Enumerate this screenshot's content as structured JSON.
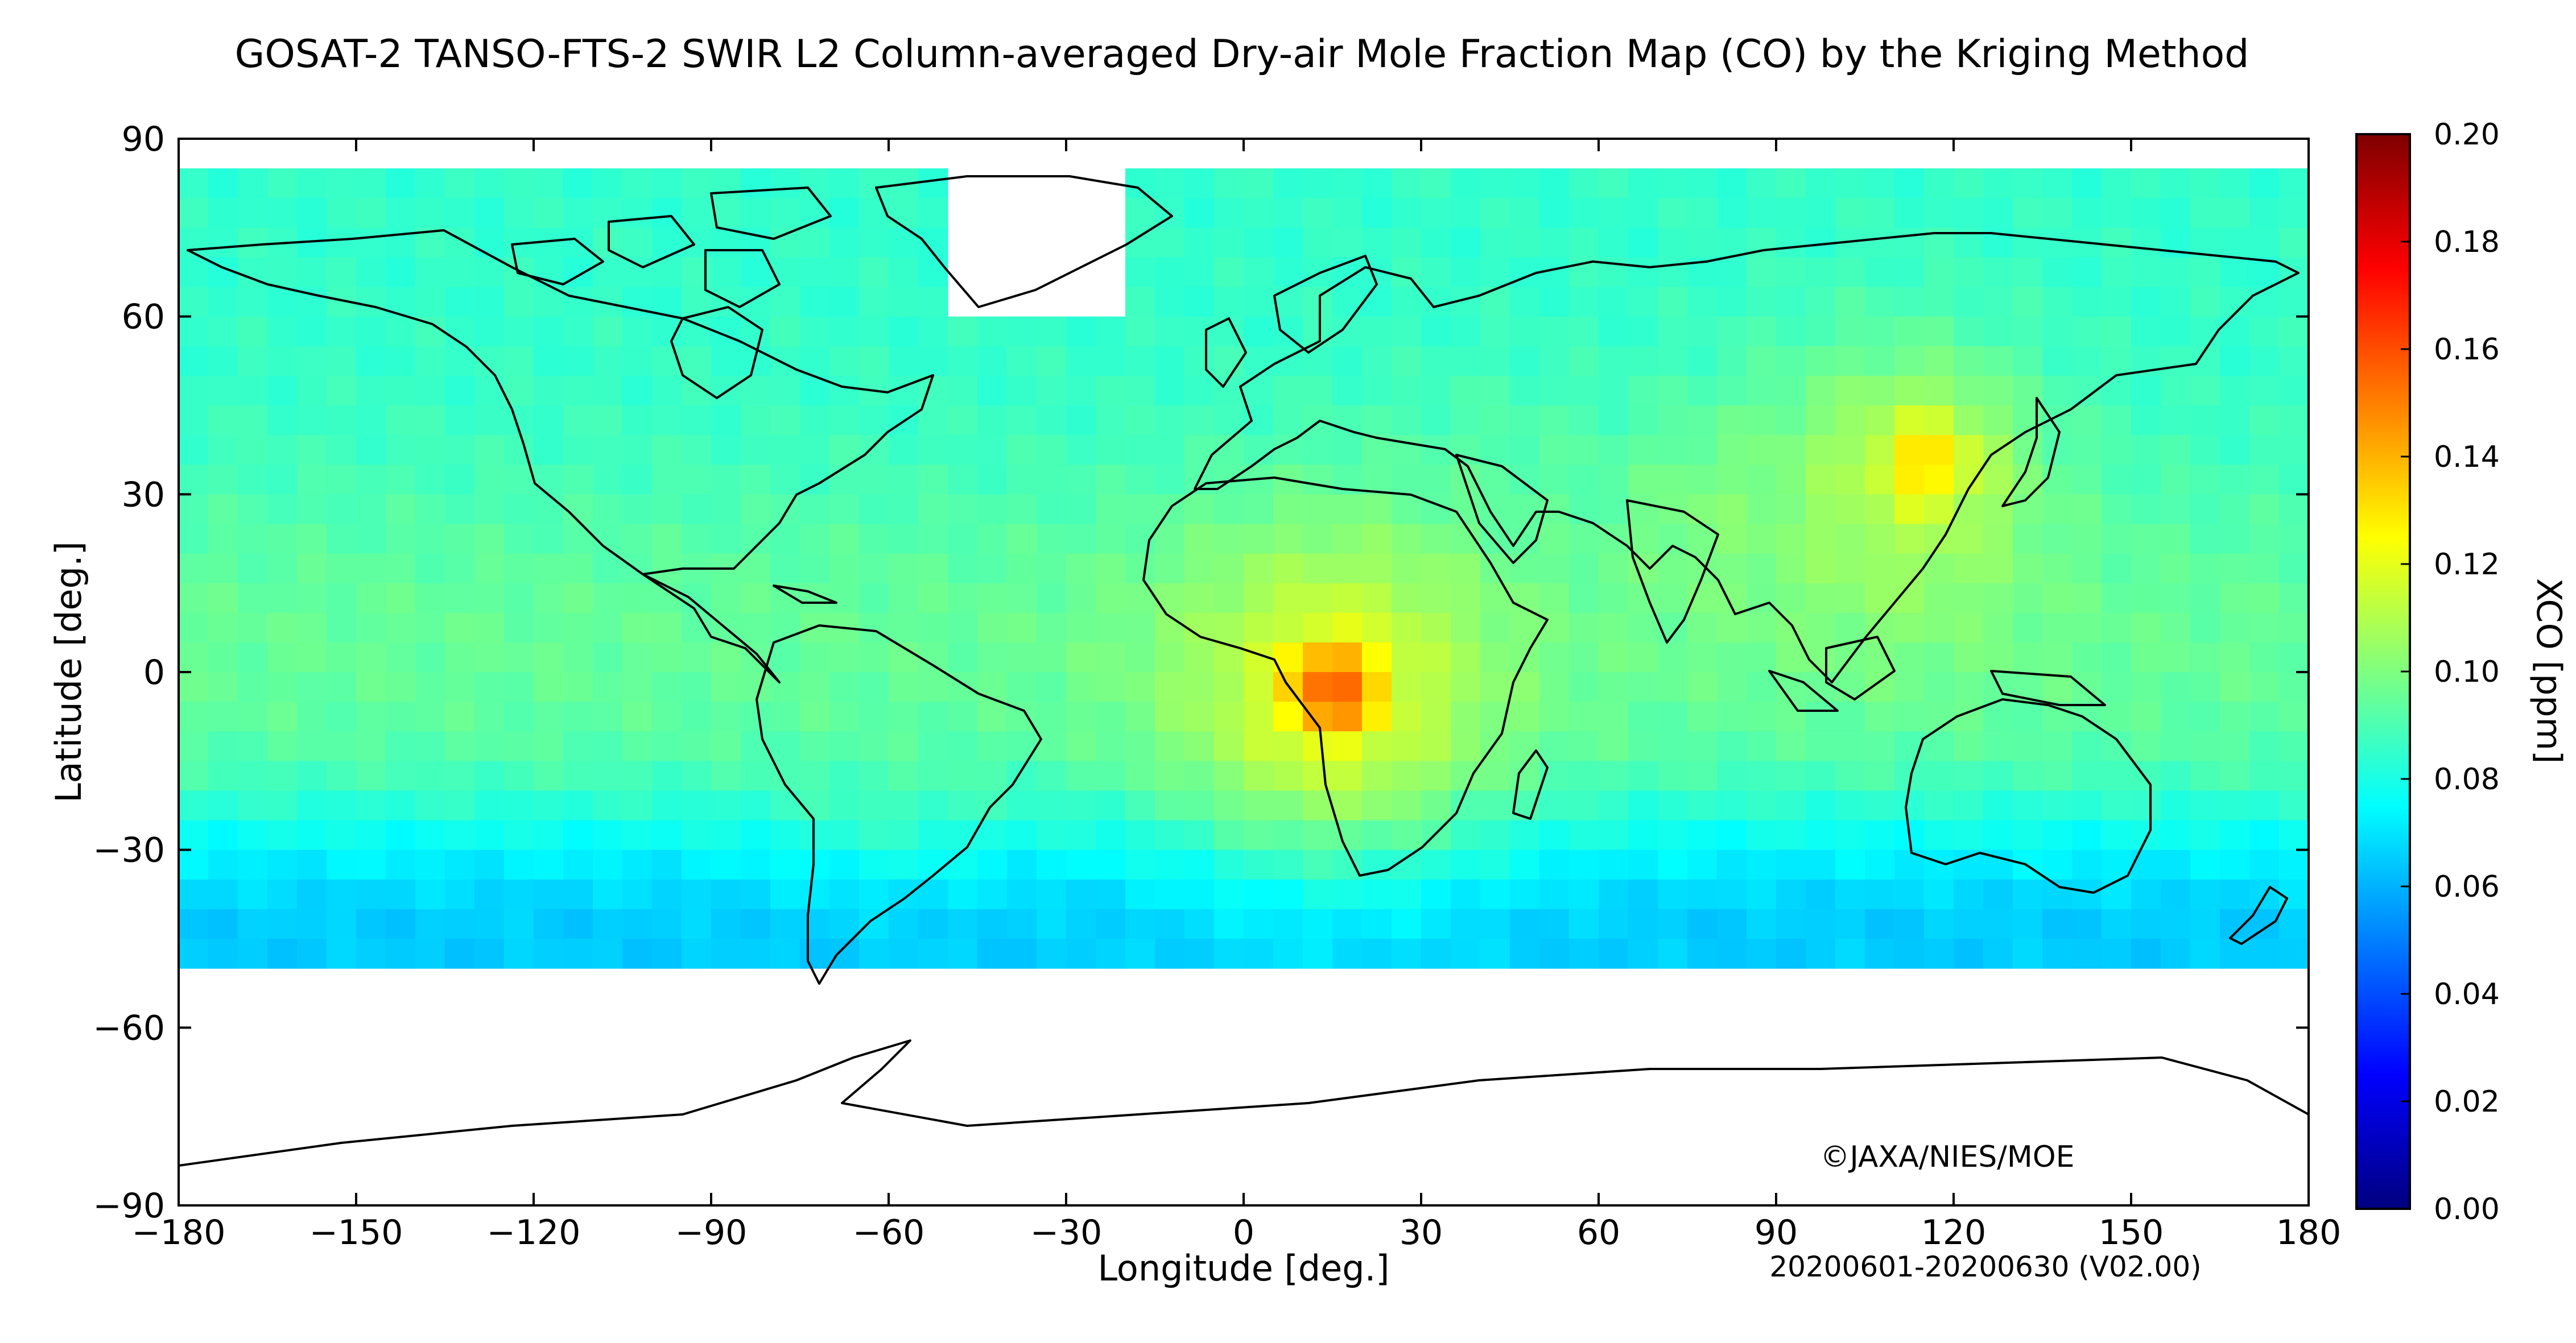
{
  "chart_data": {
    "type": "heatmap",
    "title": "GOSAT-2 TANSO-FTS-2 SWIR L2 Column-averaged Dry-air Mole Fraction Map (CO) by the Kriging Method",
    "xlabel": "Longitude [deg.]",
    "ylabel": "Latitude [deg.]",
    "xlim": [
      -180,
      180
    ],
    "ylim": [
      -90,
      90
    ],
    "x_ticks": [
      -180,
      -150,
      -120,
      -90,
      -60,
      -30,
      0,
      30,
      60,
      90,
      120,
      150,
      180
    ],
    "x_tick_labels": [
      "−180",
      "−150",
      "−120",
      "−90",
      "−60",
      "−30",
      "0",
      "30",
      "60",
      "90",
      "120",
      "150",
      "180"
    ],
    "y_ticks": [
      90,
      60,
      30,
      0,
      -30,
      -60,
      -90
    ],
    "y_tick_labels": [
      "90",
      "60",
      "30",
      "0",
      "−30",
      "−60",
      "−90"
    ],
    "colorbar": {
      "label": "XCO [ppm]",
      "range": [
        0.0,
        0.2
      ],
      "ticks": [
        0.2,
        0.18,
        0.16,
        0.14,
        0.12,
        0.1,
        0.08,
        0.06,
        0.04,
        0.02,
        0.0
      ],
      "tick_labels": [
        "0.20",
        "0.18",
        "0.16",
        "0.14",
        "0.12",
        "0.10",
        "0.08",
        "0.06",
        "0.04",
        "0.02",
        "0.00"
      ],
      "colormap": "jet"
    },
    "grid_resolution_deg": 5,
    "coverage_lat_range": [
      -50,
      85
    ],
    "background_value": 0.085,
    "tropics_value": 0.095,
    "southern_ocean_value": 0.065,
    "regions": [
      {
        "lon": 15,
        "lat": -3,
        "value": 0.155,
        "sigma_deg": 8
      },
      {
        "lon": 15,
        "lat": -3,
        "value": 0.115,
        "sigma_deg": 20
      },
      {
        "lon": 115,
        "lat": 35,
        "value": 0.132,
        "sigma_deg": 8
      },
      {
        "lon": 110,
        "lat": 30,
        "value": 0.108,
        "sigma_deg": 18
      },
      {
        "lon": 80,
        "lat": 25,
        "value": 0.1,
        "sigma_deg": 12
      },
      {
        "lon": 45,
        "lat": 25,
        "value": 0.093,
        "sigma_deg": 15
      },
      {
        "lon": -60,
        "lat": -10,
        "value": 0.09,
        "sigma_deg": 14
      }
    ],
    "annotations": {
      "copyright": "©JAXA/NIES/MOE",
      "period": "20200601-20200630 (V02.00)"
    }
  }
}
